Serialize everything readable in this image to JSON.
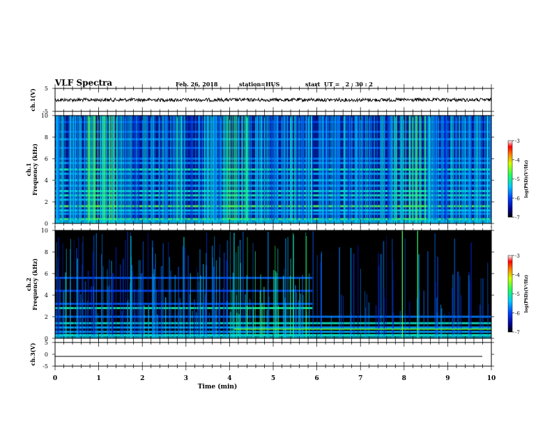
{
  "header": {
    "title": "VLF Spectra",
    "date": "Feb. 26, 2018",
    "station": "station=HUS",
    "start": "start  UT =   2 : 30 : 2"
  },
  "chart_data": [
    {
      "type": "line",
      "ylabel": "ch.1(V)",
      "ylim": [
        -5,
        5
      ],
      "yticks": [
        "5",
        "-5"
      ],
      "xlim": [
        0,
        10
      ],
      "description_level": 0
    },
    {
      "type": "heatmap",
      "ylabel_line1": "ch.1",
      "ylabel_line2": "Frequency  (kHz)",
      "ylim": [
        0,
        10
      ],
      "yticks": [
        "0",
        "2",
        "4",
        "6",
        "8",
        "10"
      ],
      "xlim": [
        0,
        10
      ],
      "colorbar": {
        "label": "log(PSD)(V²/Hz)",
        "ticks": [
          "-3",
          "-4",
          "-5",
          "-6",
          "-7"
        ],
        "range": [
          -7,
          -3
        ]
      }
    },
    {
      "type": "heatmap",
      "ylabel_line1": "ch.2",
      "ylabel_line2": "Frequency  (kHz)",
      "ylim": [
        0,
        10
      ],
      "yticks": [
        "0",
        "2",
        "4",
        "6",
        "8",
        "10"
      ],
      "xlim": [
        0,
        10
      ],
      "colorbar": {
        "label": "log(PSD)(V²/Hz)",
        "ticks": [
          "-3",
          "-4",
          "-5",
          "-6",
          "-7"
        ],
        "range": [
          -7,
          -3
        ]
      }
    },
    {
      "type": "line",
      "ylabel": "ch.3(V)",
      "ylim": [
        -5,
        5
      ],
      "yticks": [
        "5",
        "0",
        "-5"
      ],
      "xlim": [
        0,
        10
      ]
    }
  ],
  "xaxis": {
    "label": "Time  (min)",
    "ticks": [
      "0",
      "1",
      "2",
      "3",
      "4",
      "5",
      "6",
      "7",
      "8",
      "9",
      "10"
    ]
  }
}
